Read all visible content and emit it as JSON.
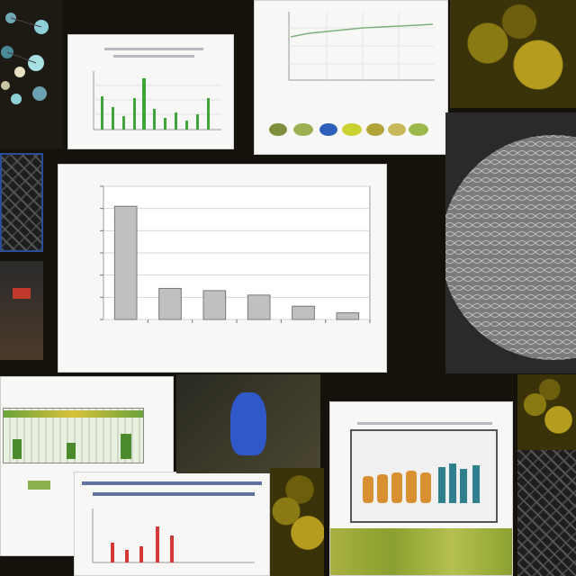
{
  "chart_data": {
    "type": "bar",
    "categories": [
      "",
      "",
      "",
      "",
      "",
      ""
    ],
    "values": [
      51,
      14,
      13,
      11,
      6,
      3
    ],
    "ylim": [
      0,
      60
    ],
    "yticks": [
      0,
      10,
      20,
      30,
      40,
      50,
      60
    ],
    "grid": true,
    "bar_color": "#c0c0c0",
    "bar_stroke": "#777777"
  },
  "colors": {
    "background": "#15120c",
    "panel": "#f7f7f5",
    "accent_green": "#3fa43a",
    "accent_red": "#d23a3a",
    "accent_blue": "#2c5fb8"
  },
  "icons": [
    "molecule-dots",
    "leaf-mosaic",
    "mesh-sphere"
  ]
}
